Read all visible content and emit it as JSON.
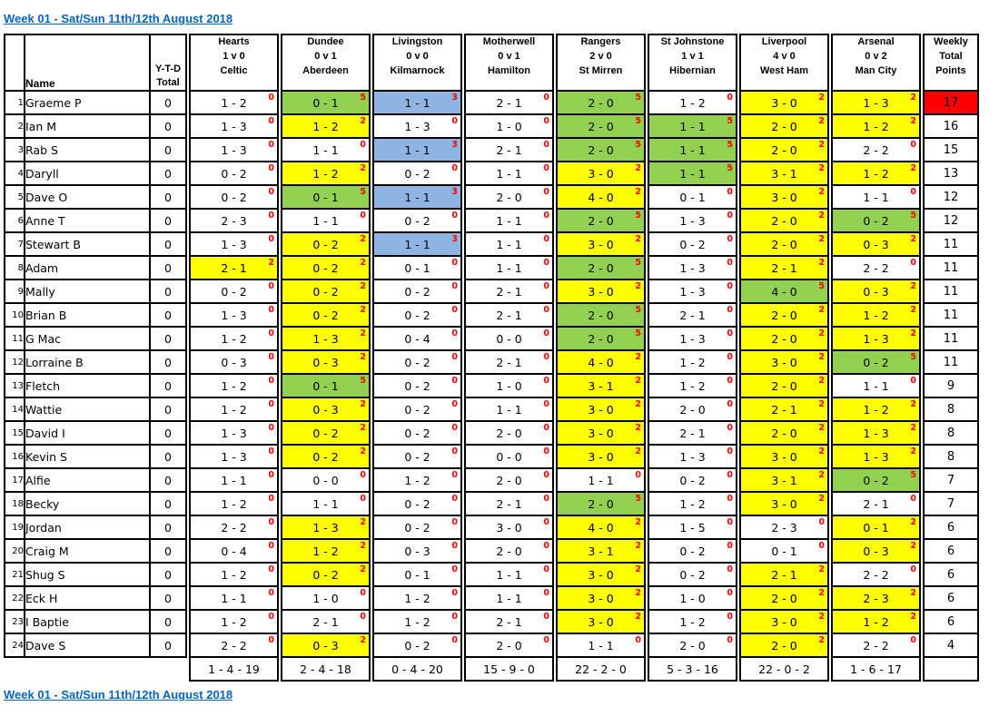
{
  "title": {
    "header_link": "Week 01 - Sat/Sun 11th/12th August 2018",
    "footer_link": "Week 01 - Sat/Sun 11th/12th August 2018"
  },
  "colors": {
    "yellow_2pts": "#FFFF00",
    "green_5pts": "#92D050",
    "blue_3pts": "#8DB4E2",
    "red_top_score": "#FF0000",
    "points_text": "#FF0000",
    "link_blue": "#0563C1"
  },
  "columns": {
    "name_label": "Name",
    "ytd_label_lines": [
      "Y-T-D",
      "Total"
    ],
    "weekly_label_lines": [
      "Weekly",
      "Total",
      "Points"
    ],
    "matches": [
      {
        "home": "Hearts",
        "score": "1 v 0",
        "away": "Celtic"
      },
      {
        "home": "Dundee",
        "score": "0 v 1",
        "away": "Aberdeen"
      },
      {
        "home": "Livingston",
        "score": "0 v 0",
        "away": "Kilmarnock"
      },
      {
        "home": "Motherwell",
        "score": "0 v 1",
        "away": "Hamilton"
      },
      {
        "home": "Rangers",
        "score": "2 v 0",
        "away": "St Mirren"
      },
      {
        "home": "St Johnstone",
        "score": "1 v 1",
        "away": "Hibernian"
      },
      {
        "home": "Liverpool",
        "score": "4 v 0",
        "away": "West Ham"
      },
      {
        "home": "Arsenal",
        "score": "0 v 2",
        "away": "Man City"
      }
    ]
  },
  "players": [
    {
      "rank": "1",
      "name": "Graeme P",
      "ytd": "0",
      "total": "17",
      "total_bg": "c-r",
      "predictions": [
        [
          "1 - 2",
          "0",
          "c-w"
        ],
        [
          "0 - 1",
          "5",
          "c-g"
        ],
        [
          "1 - 1",
          "3",
          "c-b"
        ],
        [
          "2 - 1",
          "0",
          "c-w"
        ],
        [
          "2 - 0",
          "5",
          "c-g"
        ],
        [
          "1 - 2",
          "0",
          "c-w"
        ],
        [
          "3 - 0",
          "2",
          "c-y"
        ],
        [
          "1 - 3",
          "2",
          "c-y"
        ]
      ]
    },
    {
      "rank": "2",
      "name": "Ian M",
      "ytd": "0",
      "total": "16",
      "total_bg": "c-w",
      "predictions": [
        [
          "1 - 3",
          "0",
          "c-w"
        ],
        [
          "1 - 2",
          "2",
          "c-y"
        ],
        [
          "1 - 3",
          "0",
          "c-w"
        ],
        [
          "1 - 0",
          "0",
          "c-w"
        ],
        [
          "2 - 0",
          "5",
          "c-g"
        ],
        [
          "1 - 1",
          "5",
          "c-g"
        ],
        [
          "2 - 0",
          "2",
          "c-y"
        ],
        [
          "1 - 2",
          "2",
          "c-y"
        ]
      ]
    },
    {
      "rank": "3",
      "name": "Rab S",
      "ytd": "0",
      "total": "15",
      "total_bg": "c-w",
      "predictions": [
        [
          "1 - 3",
          "0",
          "c-w"
        ],
        [
          "1 - 1",
          "0",
          "c-w"
        ],
        [
          "1 - 1",
          "3",
          "c-b"
        ],
        [
          "2 - 1",
          "0",
          "c-w"
        ],
        [
          "2 - 0",
          "5",
          "c-g"
        ],
        [
          "1 - 1",
          "5",
          "c-g"
        ],
        [
          "2 - 0",
          "2",
          "c-y"
        ],
        [
          "2 - 2",
          "0",
          "c-w"
        ]
      ]
    },
    {
      "rank": "4",
      "name": "Daryll",
      "ytd": "0",
      "total": "13",
      "total_bg": "c-w",
      "predictions": [
        [
          "0 - 2",
          "0",
          "c-w"
        ],
        [
          "1 - 2",
          "2",
          "c-y"
        ],
        [
          "0 - 2",
          "0",
          "c-w"
        ],
        [
          "1 - 1",
          "0",
          "c-w"
        ],
        [
          "3 - 0",
          "2",
          "c-y"
        ],
        [
          "1 - 1",
          "5",
          "c-g"
        ],
        [
          "3 - 1",
          "2",
          "c-y"
        ],
        [
          "1 - 2",
          "2",
          "c-y"
        ]
      ]
    },
    {
      "rank": "5",
      "name": "Dave O",
      "ytd": "0",
      "total": "12",
      "total_bg": "c-w",
      "predictions": [
        [
          "0 - 2",
          "0",
          "c-w"
        ],
        [
          "0 - 1",
          "5",
          "c-g"
        ],
        [
          "1 - 1",
          "3",
          "c-b"
        ],
        [
          "2 - 0",
          "0",
          "c-w"
        ],
        [
          "4 - 0",
          "2",
          "c-y"
        ],
        [
          "0 - 1",
          "0",
          "c-w"
        ],
        [
          "3 - 0",
          "2",
          "c-y"
        ],
        [
          "1 - 1",
          "0",
          "c-w"
        ]
      ]
    },
    {
      "rank": "6",
      "name": "Anne T",
      "ytd": "0",
      "total": "12",
      "total_bg": "c-w",
      "predictions": [
        [
          "2 - 3",
          "0",
          "c-w"
        ],
        [
          "1 - 1",
          "0",
          "c-w"
        ],
        [
          "0 - 2",
          "0",
          "c-w"
        ],
        [
          "1 - 1",
          "0",
          "c-w"
        ],
        [
          "2 - 0",
          "5",
          "c-g"
        ],
        [
          "1 - 3",
          "0",
          "c-w"
        ],
        [
          "2 - 0",
          "2",
          "c-y"
        ],
        [
          "0 - 2",
          "5",
          "c-g"
        ]
      ]
    },
    {
      "rank": "7",
      "name": "Stewart B",
      "ytd": "0",
      "total": "11",
      "total_bg": "c-w",
      "predictions": [
        [
          "1 - 3",
          "0",
          "c-w"
        ],
        [
          "0 - 2",
          "2",
          "c-y"
        ],
        [
          "1 - 1",
          "3",
          "c-b"
        ],
        [
          "1 - 1",
          "0",
          "c-w"
        ],
        [
          "3 - 0",
          "2",
          "c-y"
        ],
        [
          "0 - 2",
          "0",
          "c-w"
        ],
        [
          "2 - 0",
          "2",
          "c-y"
        ],
        [
          "0 - 3",
          "2",
          "c-y"
        ]
      ]
    },
    {
      "rank": "8",
      "name": "Adam",
      "ytd": "0",
      "total": "11",
      "total_bg": "c-w",
      "predictions": [
        [
          "2 - 1",
          "2",
          "c-y"
        ],
        [
          "0 - 2",
          "2",
          "c-y"
        ],
        [
          "0 - 1",
          "0",
          "c-w"
        ],
        [
          "1 - 1",
          "0",
          "c-w"
        ],
        [
          "2 - 0",
          "5",
          "c-g"
        ],
        [
          "1 - 3",
          "0",
          "c-w"
        ],
        [
          "2 - 1",
          "2",
          "c-y"
        ],
        [
          "2 - 2",
          "0",
          "c-w"
        ]
      ]
    },
    {
      "rank": "9",
      "name": "Mally",
      "ytd": "0",
      "total": "11",
      "total_bg": "c-w",
      "predictions": [
        [
          "0 - 2",
          "0",
          "c-w"
        ],
        [
          "0 - 2",
          "2",
          "c-y"
        ],
        [
          "0 - 2",
          "0",
          "c-w"
        ],
        [
          "2 - 1",
          "0",
          "c-w"
        ],
        [
          "3 - 0",
          "2",
          "c-y"
        ],
        [
          "1 - 3",
          "0",
          "c-w"
        ],
        [
          "4 - 0",
          "5",
          "c-g"
        ],
        [
          "0 - 3",
          "2",
          "c-y"
        ]
      ]
    },
    {
      "rank": "10",
      "name": "Brian B",
      "ytd": "0",
      "total": "11",
      "total_bg": "c-w",
      "predictions": [
        [
          "1 - 3",
          "0",
          "c-w"
        ],
        [
          "0 - 2",
          "2",
          "c-y"
        ],
        [
          "0 - 2",
          "0",
          "c-w"
        ],
        [
          "2 - 1",
          "0",
          "c-w"
        ],
        [
          "2 - 0",
          "5",
          "c-g"
        ],
        [
          "2 - 1",
          "0",
          "c-w"
        ],
        [
          "2 - 0",
          "2",
          "c-y"
        ],
        [
          "1 - 2",
          "2",
          "c-y"
        ]
      ]
    },
    {
      "rank": "11",
      "name": "G Mac",
      "ytd": "0",
      "total": "11",
      "total_bg": "c-w",
      "predictions": [
        [
          "1 - 2",
          "0",
          "c-w"
        ],
        [
          "1 - 3",
          "2",
          "c-y"
        ],
        [
          "0 - 4",
          "0",
          "c-w"
        ],
        [
          "0 - 0",
          "0",
          "c-w"
        ],
        [
          "2 - 0",
          "5",
          "c-g"
        ],
        [
          "1 - 3",
          "0",
          "c-w"
        ],
        [
          "2 - 0",
          "2",
          "c-y"
        ],
        [
          "1 - 3",
          "2",
          "c-y"
        ]
      ]
    },
    {
      "rank": "12",
      "name": "Lorraine B",
      "ytd": "0",
      "total": "11",
      "total_bg": "c-w",
      "predictions": [
        [
          "0 - 3",
          "0",
          "c-w"
        ],
        [
          "0 - 3",
          "2",
          "c-y"
        ],
        [
          "0 - 2",
          "0",
          "c-w"
        ],
        [
          "2 - 1",
          "0",
          "c-w"
        ],
        [
          "4 - 0",
          "2",
          "c-y"
        ],
        [
          "1 - 2",
          "0",
          "c-w"
        ],
        [
          "3 - 0",
          "2",
          "c-y"
        ],
        [
          "0 - 2",
          "5",
          "c-g"
        ]
      ]
    },
    {
      "rank": "13",
      "name": "Fletch",
      "ytd": "0",
      "total": "9",
      "total_bg": "c-w",
      "predictions": [
        [
          "1 - 2",
          "0",
          "c-w"
        ],
        [
          "0 - 1",
          "5",
          "c-g"
        ],
        [
          "0 - 2",
          "0",
          "c-w"
        ],
        [
          "1 - 0",
          "0",
          "c-w"
        ],
        [
          "3 - 1",
          "2",
          "c-y"
        ],
        [
          "1 - 2",
          "0",
          "c-w"
        ],
        [
          "2 - 0",
          "2",
          "c-y"
        ],
        [
          "1 - 1",
          "0",
          "c-w"
        ]
      ]
    },
    {
      "rank": "14",
      "name": "Wattie",
      "ytd": "0",
      "total": "8",
      "total_bg": "c-w",
      "predictions": [
        [
          "1 - 2",
          "0",
          "c-w"
        ],
        [
          "0 - 3",
          "2",
          "c-y"
        ],
        [
          "0 - 2",
          "0",
          "c-w"
        ],
        [
          "1 - 1",
          "0",
          "c-w"
        ],
        [
          "3 - 0",
          "2",
          "c-y"
        ],
        [
          "2 - 0",
          "0",
          "c-w"
        ],
        [
          "2 - 1",
          "2",
          "c-y"
        ],
        [
          "1 - 2",
          "2",
          "c-y"
        ]
      ]
    },
    {
      "rank": "15",
      "name": "David I",
      "ytd": "0",
      "total": "8",
      "total_bg": "c-w",
      "predictions": [
        [
          "1 - 3",
          "0",
          "c-w"
        ],
        [
          "0 - 2",
          "2",
          "c-y"
        ],
        [
          "0 - 2",
          "0",
          "c-w"
        ],
        [
          "2 - 0",
          "0",
          "c-w"
        ],
        [
          "3 - 0",
          "2",
          "c-y"
        ],
        [
          "2 - 1",
          "0",
          "c-w"
        ],
        [
          "2 - 0",
          "2",
          "c-y"
        ],
        [
          "1 - 3",
          "2",
          "c-y"
        ]
      ]
    },
    {
      "rank": "16",
      "name": "Kevin S",
      "ytd": "0",
      "total": "8",
      "total_bg": "c-w",
      "predictions": [
        [
          "1 - 3",
          "0",
          "c-w"
        ],
        [
          "0 - 2",
          "2",
          "c-y"
        ],
        [
          "0 - 2",
          "0",
          "c-w"
        ],
        [
          "0 - 0",
          "0",
          "c-w"
        ],
        [
          "3 - 0",
          "2",
          "c-y"
        ],
        [
          "1 - 3",
          "0",
          "c-w"
        ],
        [
          "3 - 0",
          "2",
          "c-y"
        ],
        [
          "1 - 3",
          "2",
          "c-y"
        ]
      ]
    },
    {
      "rank": "17",
      "name": "Alfie",
      "ytd": "0",
      "total": "7",
      "total_bg": "c-w",
      "predictions": [
        [
          "1 - 1",
          "0",
          "c-w"
        ],
        [
          "0 - 0",
          "0",
          "c-w"
        ],
        [
          "1 - 2",
          "0",
          "c-w"
        ],
        [
          "2 - 0",
          "0",
          "c-w"
        ],
        [
          "1 - 1",
          "0",
          "c-w"
        ],
        [
          "0 - 2",
          "0",
          "c-w"
        ],
        [
          "3 - 1",
          "2",
          "c-y"
        ],
        [
          "0 - 2",
          "5",
          "c-g"
        ]
      ]
    },
    {
      "rank": "18",
      "name": "Becky",
      "ytd": "0",
      "total": "7",
      "total_bg": "c-w",
      "predictions": [
        [
          "1 - 2",
          "0",
          "c-w"
        ],
        [
          "1 - 1",
          "0",
          "c-w"
        ],
        [
          "0 - 2",
          "0",
          "c-w"
        ],
        [
          "2 - 1",
          "0",
          "c-w"
        ],
        [
          "2 - 0",
          "5",
          "c-g"
        ],
        [
          "1 - 2",
          "0",
          "c-w"
        ],
        [
          "3 - 0",
          "2",
          "c-y"
        ],
        [
          "2 - 1",
          "0",
          "c-w"
        ]
      ]
    },
    {
      "rank": "19",
      "name": "Jordan",
      "ytd": "0",
      "total": "6",
      "total_bg": "c-w",
      "predictions": [
        [
          "2 - 2",
          "0",
          "c-w"
        ],
        [
          "1 - 3",
          "2",
          "c-y"
        ],
        [
          "0 - 2",
          "0",
          "c-w"
        ],
        [
          "3 - 0",
          "0",
          "c-w"
        ],
        [
          "4 - 0",
          "2",
          "c-y"
        ],
        [
          "1 - 5",
          "0",
          "c-w"
        ],
        [
          "2 - 3",
          "0",
          "c-w"
        ],
        [
          "0 - 1",
          "2",
          "c-y"
        ]
      ]
    },
    {
      "rank": "20",
      "name": "Craig M",
      "ytd": "0",
      "total": "6",
      "total_bg": "c-w",
      "predictions": [
        [
          "0 - 4",
          "0",
          "c-w"
        ],
        [
          "1 - 2",
          "2",
          "c-y"
        ],
        [
          "0 - 3",
          "0",
          "c-w"
        ],
        [
          "2 - 0",
          "0",
          "c-w"
        ],
        [
          "3 - 1",
          "2",
          "c-y"
        ],
        [
          "0 - 2",
          "0",
          "c-w"
        ],
        [
          "0 - 1",
          "0",
          "c-w"
        ],
        [
          "0 - 3",
          "2",
          "c-y"
        ]
      ]
    },
    {
      "rank": "21",
      "name": "Shug S",
      "ytd": "0",
      "total": "6",
      "total_bg": "c-w",
      "predictions": [
        [
          "1 - 2",
          "0",
          "c-w"
        ],
        [
          "0 - 2",
          "2",
          "c-y"
        ],
        [
          "0 - 1",
          "0",
          "c-w"
        ],
        [
          "1 - 1",
          "0",
          "c-w"
        ],
        [
          "3 - 0",
          "2",
          "c-y"
        ],
        [
          "0 - 2",
          "0",
          "c-w"
        ],
        [
          "2 - 1",
          "2",
          "c-y"
        ],
        [
          "2 - 2",
          "0",
          "c-w"
        ]
      ]
    },
    {
      "rank": "22",
      "name": "Eck H",
      "ytd": "0",
      "total": "6",
      "total_bg": "c-w",
      "predictions": [
        [
          "1 - 1",
          "0",
          "c-w"
        ],
        [
          "1 - 0",
          "0",
          "c-w"
        ],
        [
          "1 - 2",
          "0",
          "c-w"
        ],
        [
          "1 - 1",
          "0",
          "c-w"
        ],
        [
          "3 - 0",
          "2",
          "c-y"
        ],
        [
          "1 - 0",
          "0",
          "c-w"
        ],
        [
          "2 - 0",
          "2",
          "c-y"
        ],
        [
          "2 - 3",
          "2",
          "c-y"
        ]
      ]
    },
    {
      "rank": "23",
      "name": "I Baptie",
      "ytd": "0",
      "total": "6",
      "total_bg": "c-w",
      "predictions": [
        [
          "1 - 2",
          "0",
          "c-w"
        ],
        [
          "2 - 1",
          "0",
          "c-w"
        ],
        [
          "1 - 2",
          "0",
          "c-w"
        ],
        [
          "2 - 1",
          "0",
          "c-w"
        ],
        [
          "3 - 0",
          "2",
          "c-y"
        ],
        [
          "1 - 2",
          "0",
          "c-w"
        ],
        [
          "3 - 0",
          "2",
          "c-y"
        ],
        [
          "1 - 2",
          "2",
          "c-y"
        ]
      ]
    },
    {
      "rank": "24",
      "name": "Dave S",
      "ytd": "0",
      "total": "4",
      "total_bg": "c-w",
      "predictions": [
        [
          "2 - 2",
          "0",
          "c-w"
        ],
        [
          "0 - 3",
          "2",
          "c-y"
        ],
        [
          "0 - 2",
          "0",
          "c-w"
        ],
        [
          "2 - 0",
          "0",
          "c-w"
        ],
        [
          "1 - 1",
          "0",
          "c-w"
        ],
        [
          "2 - 0",
          "0",
          "c-w"
        ],
        [
          "2 - 0",
          "2",
          "c-y"
        ],
        [
          "2 - 2",
          "0",
          "c-w"
        ]
      ]
    }
  ],
  "summary": {
    "match_totals": [
      "1 - 4 - 19",
      "2 - 4 - 18",
      "0 - 4 - 20",
      "15 - 9 - 0",
      "22 - 2 - 0",
      "5 - 3 - 16",
      "22 - 0 - 2",
      "1 - 6 - 17"
    ],
    "weekly_total": ""
  }
}
